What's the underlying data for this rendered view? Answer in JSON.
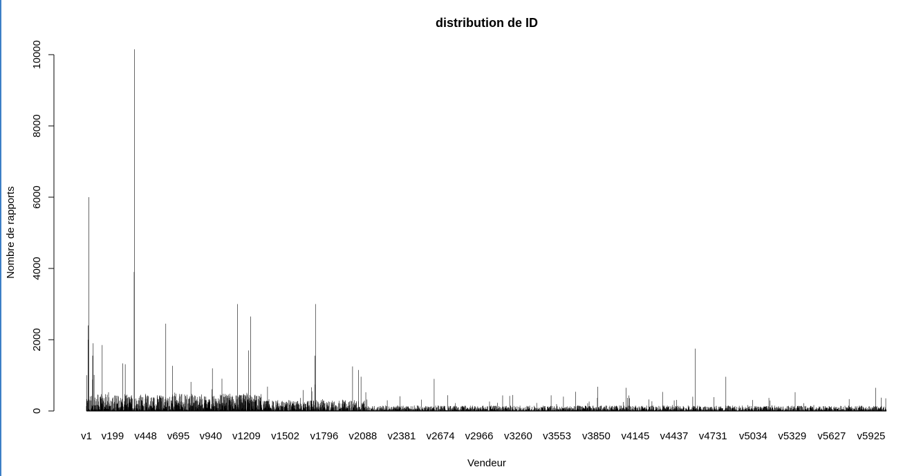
{
  "chart_data": {
    "type": "bar",
    "title": "distribution de ID",
    "xlabel": "Vendeur",
    "ylabel": "Nombre de rapports",
    "ylim": [
      0,
      10200
    ],
    "yticks": [
      0,
      2000,
      4000,
      6000,
      8000,
      10000
    ],
    "yticklabels": [
      "0",
      "2000",
      "4000",
      "6000",
      "8000",
      "10000"
    ],
    "xticklabels": [
      "v1",
      "v199",
      "v448",
      "v695",
      "v940",
      "v1209",
      "v1502",
      "v1796",
      "v2088",
      "v2381",
      "v2674",
      "v2966",
      "v3260",
      "v3553",
      "v3850",
      "v4145",
      "v4437",
      "v4731",
      "v5034",
      "v5329",
      "v5627",
      "v5925"
    ],
    "n_categories": 6040,
    "bar_color": "#000000",
    "grid": false,
    "notable_values": [
      {
        "x": "v19",
        "y": 6000
      },
      {
        "x": "v14",
        "y": 2400
      },
      {
        "x": "v15",
        "y": 2000
      },
      {
        "x": "v52",
        "y": 1900
      },
      {
        "x": "v48",
        "y": 1550
      },
      {
        "x": "v120",
        "y": 1850
      },
      {
        "x": "v363",
        "y": 10150
      },
      {
        "x": "v361",
        "y": 3900
      },
      {
        "x": "v600",
        "y": 2450
      },
      {
        "x": "v1141",
        "y": 3000
      },
      {
        "x": "v1240",
        "y": 2650
      },
      {
        "x": "v1225",
        "y": 1700
      },
      {
        "x": "v1730",
        "y": 3000
      },
      {
        "x": "v1725",
        "y": 1550
      },
      {
        "x": "v2010",
        "y": 1250
      },
      {
        "x": "v2055",
        "y": 1150
      },
      {
        "x": "v2626",
        "y": 900
      },
      {
        "x": "v3860",
        "y": 680
      },
      {
        "x": "v4075",
        "y": 650
      },
      {
        "x": "v4598",
        "y": 1750
      },
      {
        "x": "v4828",
        "y": 960
      },
      {
        "x": "v5958",
        "y": 650
      }
    ]
  }
}
